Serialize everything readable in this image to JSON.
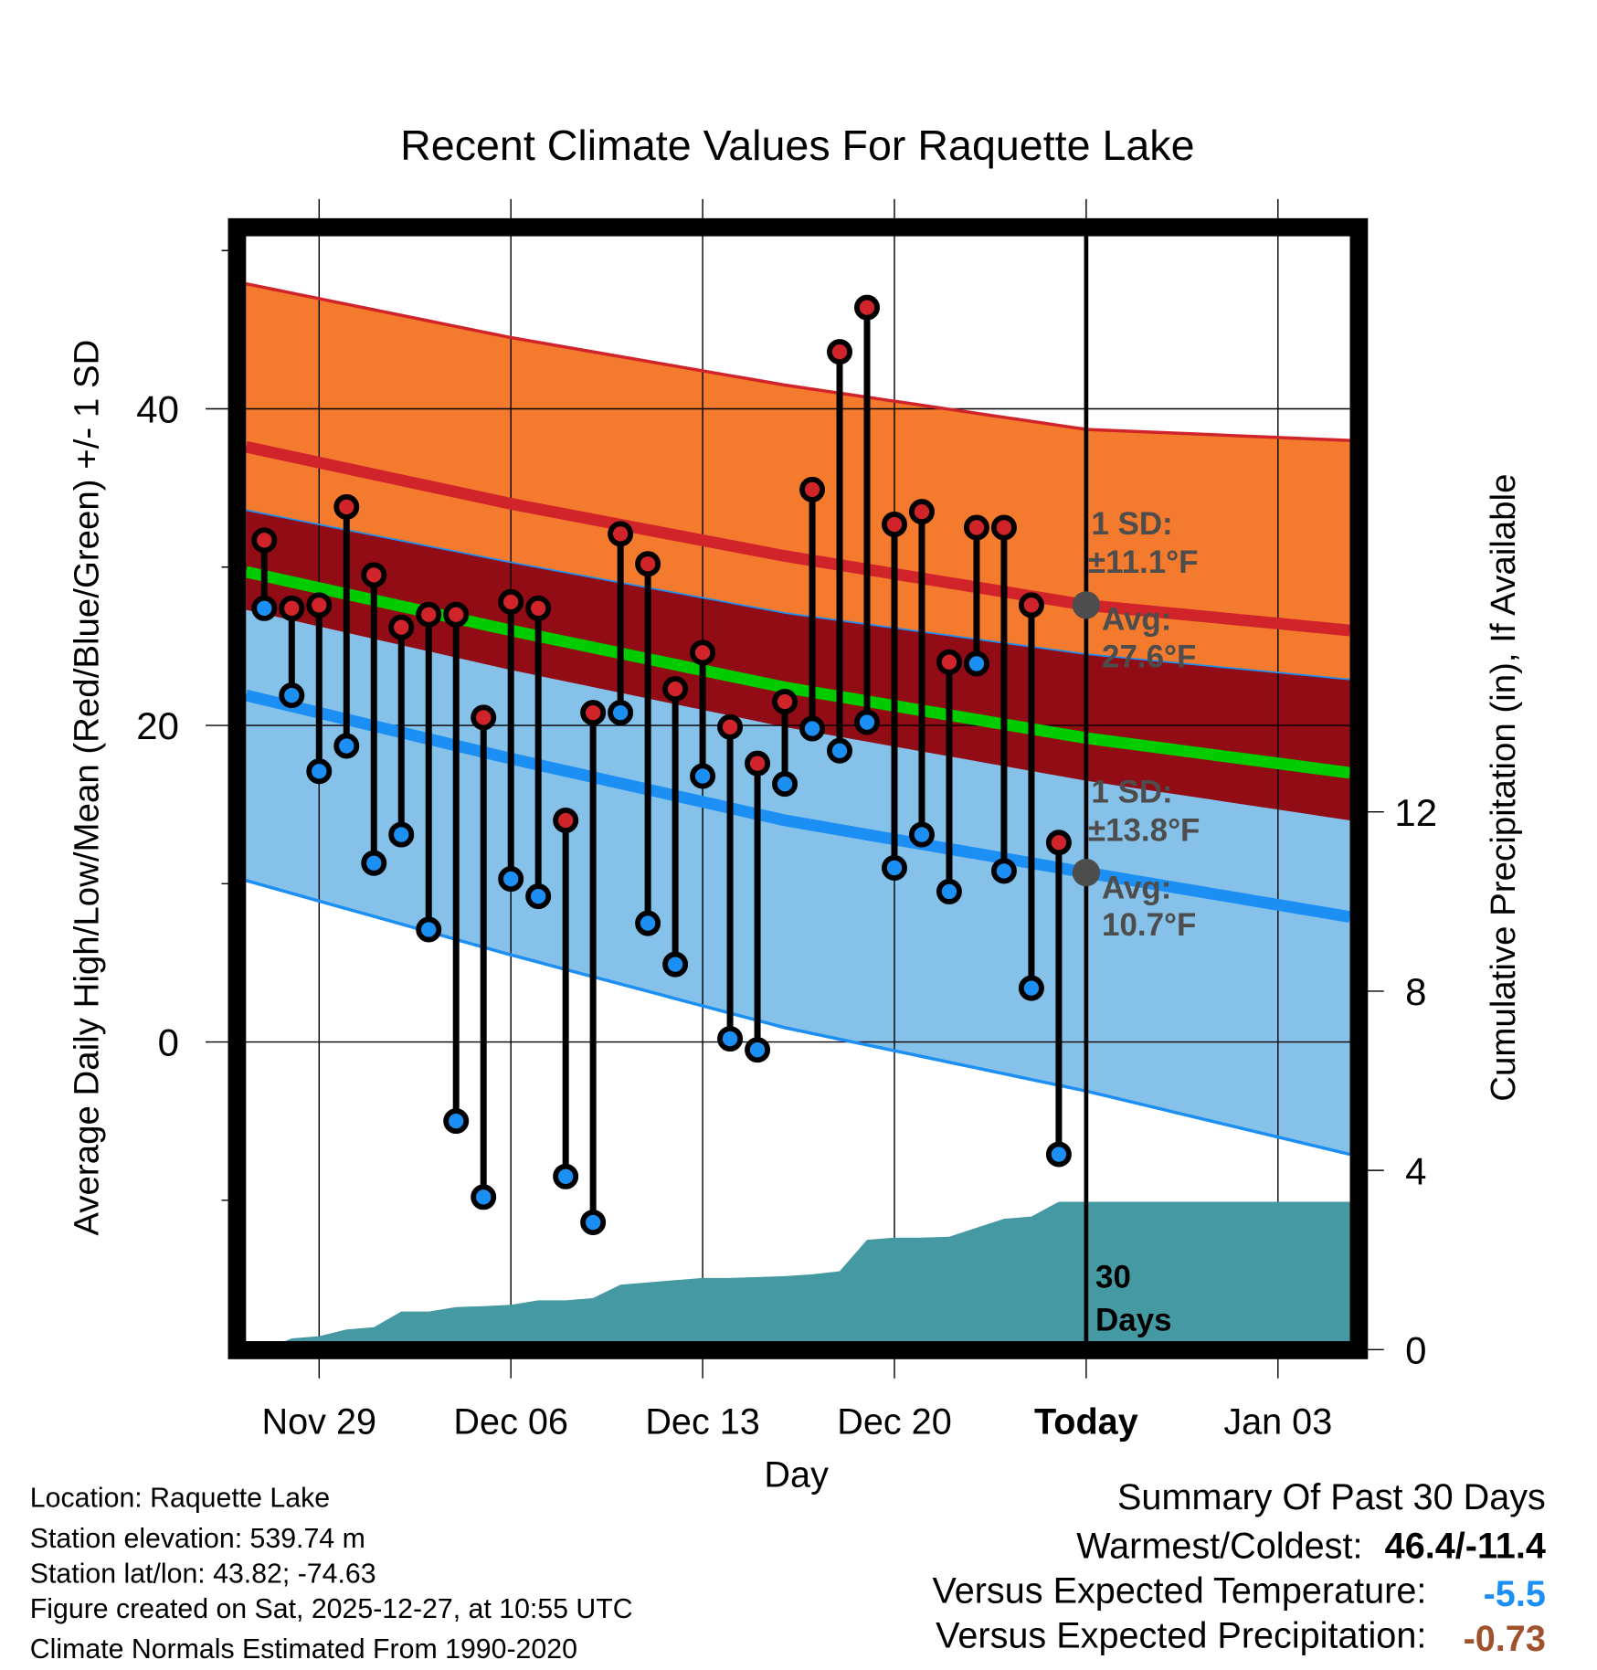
{
  "chart_data": {
    "type": "line",
    "title": "Recent Climate Values For Raquette Lake",
    "xlabel": "Day",
    "ylabel": "Average Daily High/Low/Mean (Red/Blue/Green) +/- 1 SD",
    "y2label": "Cumulative Precipitation (in), If Available",
    "xlim": [
      "2025-11-26T08:00",
      "2026-01-05T15:00"
    ],
    "ylim": [
      -18.9,
      50.9
    ],
    "y2lim": [
      0,
      25.2
    ],
    "x_ticks": [
      {
        "date": "2025-11-29",
        "label": "Nov 29"
      },
      {
        "date": "2025-12-06",
        "label": "Dec 06"
      },
      {
        "date": "2025-12-13",
        "label": "Dec 13"
      },
      {
        "date": "2025-12-20",
        "label": "Dec 20"
      },
      {
        "date": "2025-12-27",
        "label": "Today"
      },
      {
        "date": "2026-01-03",
        "label": "Jan 03"
      }
    ],
    "y_ticks": [
      0,
      20,
      40
    ],
    "y_minor_ticks": [
      -10,
      10,
      30,
      50
    ],
    "y2_ticks": [
      0,
      4,
      8,
      12
    ],
    "today": "2025-12-27",
    "observed": [
      {
        "date": "2025-11-27",
        "high": 31.7,
        "low": 27.4
      },
      {
        "date": "2025-11-28",
        "high": 27.4,
        "low": 21.9
      },
      {
        "date": "2025-11-29",
        "high": 27.6,
        "low": 17.1
      },
      {
        "date": "2025-11-30",
        "high": 33.8,
        "low": 18.7
      },
      {
        "date": "2025-12-01",
        "high": 29.5,
        "low": 11.3
      },
      {
        "date": "2025-12-02",
        "high": 26.2,
        "low": 13.1
      },
      {
        "date": "2025-12-03",
        "high": 27.0,
        "low": 7.1
      },
      {
        "date": "2025-12-04",
        "high": 27.0,
        "low": -5.0
      },
      {
        "date": "2025-12-05",
        "high": 20.5,
        "low": -9.8
      },
      {
        "date": "2025-12-06",
        "high": 27.8,
        "low": 10.3
      },
      {
        "date": "2025-12-07",
        "high": 27.4,
        "low": 9.2
      },
      {
        "date": "2025-12-08",
        "high": 14.0,
        "low": -8.5
      },
      {
        "date": "2025-12-09",
        "high": 20.8,
        "low": -11.4
      },
      {
        "date": "2025-12-10",
        "high": 32.1,
        "low": 20.8
      },
      {
        "date": "2025-12-11",
        "high": 30.2,
        "low": 7.5
      },
      {
        "date": "2025-12-12",
        "high": 22.3,
        "low": 4.9
      },
      {
        "date": "2025-12-13",
        "high": 24.6,
        "low": 16.8
      },
      {
        "date": "2025-12-14",
        "high": 19.9,
        "low": 0.2
      },
      {
        "date": "2025-12-15",
        "high": 17.6,
        "low": -0.5
      },
      {
        "date": "2025-12-16",
        "high": 21.5,
        "low": 16.3
      },
      {
        "date": "2025-12-17",
        "high": 34.9,
        "low": 19.8
      },
      {
        "date": "2025-12-18",
        "high": 43.6,
        "low": 18.4
      },
      {
        "date": "2025-12-19",
        "high": 46.4,
        "low": 20.2
      },
      {
        "date": "2025-12-20",
        "high": 32.7,
        "low": 11.0
      },
      {
        "date": "2025-12-21",
        "high": 33.5,
        "low": 13.1
      },
      {
        "date": "2025-12-22",
        "high": 24.0,
        "low": 9.5
      },
      {
        "date": "2025-12-23",
        "high": 32.5,
        "low": 23.9
      },
      {
        "date": "2025-12-24",
        "high": 32.5,
        "low": 10.8
      },
      {
        "date": "2025-12-25",
        "high": 27.6,
        "low": 3.4
      },
      {
        "date": "2025-12-26",
        "high": 12.6,
        "low": -7.1
      }
    ],
    "normals": [
      {
        "date": "2025-11-26T08:00",
        "high": 37.6,
        "high_sd": 10.3,
        "low": 21.9,
        "low_sd": 11.7,
        "mean": 29.7
      },
      {
        "date": "2025-12-06",
        "high": 34.0,
        "high_sd": 10.5,
        "low": 17.9,
        "low_sd": 12.4,
        "mean": 26.0
      },
      {
        "date": "2025-12-16",
        "high": 30.7,
        "high_sd": 10.8,
        "low": 14.0,
        "low_sd": 13.1,
        "mean": 22.4
      },
      {
        "date": "2025-12-27",
        "high": 27.6,
        "high_sd": 11.1,
        "low": 10.7,
        "low_sd": 13.8,
        "mean": 19.2
      },
      {
        "date": "2026-01-05T15:00",
        "high": 26.0,
        "high_sd": 12.0,
        "low": 7.9,
        "low_sd": 15.0,
        "mean": 17.0
      }
    ],
    "cumulative_precip": [
      {
        "date": "2025-11-27",
        "value": 0.0
      },
      {
        "date": "2025-11-28",
        "value": 0.25
      },
      {
        "date": "2025-11-29",
        "value": 0.3
      },
      {
        "date": "2025-11-30",
        "value": 0.45
      },
      {
        "date": "2025-12-01",
        "value": 0.5
      },
      {
        "date": "2025-12-02",
        "value": 0.85
      },
      {
        "date": "2025-12-03",
        "value": 0.85
      },
      {
        "date": "2025-12-04",
        "value": 0.95
      },
      {
        "date": "2025-12-05",
        "value": 0.97
      },
      {
        "date": "2025-12-06",
        "value": 1.0
      },
      {
        "date": "2025-12-07",
        "value": 1.1
      },
      {
        "date": "2025-12-08",
        "value": 1.1
      },
      {
        "date": "2025-12-09",
        "value": 1.15
      },
      {
        "date": "2025-12-10",
        "value": 1.45
      },
      {
        "date": "2025-12-11",
        "value": 1.5
      },
      {
        "date": "2025-12-12",
        "value": 1.55
      },
      {
        "date": "2025-12-13",
        "value": 1.6
      },
      {
        "date": "2025-12-14",
        "value": 1.6
      },
      {
        "date": "2025-12-15",
        "value": 1.62
      },
      {
        "date": "2025-12-16",
        "value": 1.64
      },
      {
        "date": "2025-12-17",
        "value": 1.68
      },
      {
        "date": "2025-12-18",
        "value": 1.75
      },
      {
        "date": "2025-12-19",
        "value": 2.45
      },
      {
        "date": "2025-12-20",
        "value": 2.5
      },
      {
        "date": "2025-12-21",
        "value": 2.5
      },
      {
        "date": "2025-12-22",
        "value": 2.52
      },
      {
        "date": "2025-12-23",
        "value": 2.72
      },
      {
        "date": "2025-12-24",
        "value": 2.92
      },
      {
        "date": "2025-12-25",
        "value": 2.97
      },
      {
        "date": "2025-12-26",
        "value": 3.3
      }
    ],
    "annotations": {
      "high_sd_line1": "1 SD:",
      "high_sd_line2": "±11.1°F",
      "high_avg_line1": "Avg:",
      "high_avg_line2": "27.6°F",
      "low_sd_line1": "1 SD:",
      "low_sd_line2": "±13.8°F",
      "low_avg_line1": "Avg:",
      "low_avg_line2": "10.7°F",
      "days_line1": "30",
      "days_line2": "Days"
    },
    "colors": {
      "orange": "#f47a2d",
      "dark_red": "#910c14",
      "light_blue": "#85c1e8",
      "high_line": "#d1242a",
      "low_line": "#1c8ff5",
      "mean_line": "#00cc00",
      "precip": "#4599a2",
      "annot": "#4d4d4d"
    }
  },
  "footer": {
    "location": "Location: Raquette Lake",
    "elevation": "Station elevation: 539.74 m",
    "latlon": "Station lat/lon: 43.82; -74.63",
    "created": "Figure created on Sat, 2025-12-27, at 10:55 UTC",
    "normals": "Climate Normals Estimated From 1990-2020"
  },
  "summary": {
    "title": "Summary Of Past 30 Days",
    "warm_cold_label": "Warmest/Coldest:",
    "warm_cold_value": "46.4/-11.4",
    "temp_label": "Versus Expected Temperature:",
    "temp_value": "-5.5",
    "temp_color": "#1c8ff5",
    "precip_label": "Versus Expected Precipitation:",
    "precip_value": "-0.73",
    "precip_color": "#a0522d"
  }
}
